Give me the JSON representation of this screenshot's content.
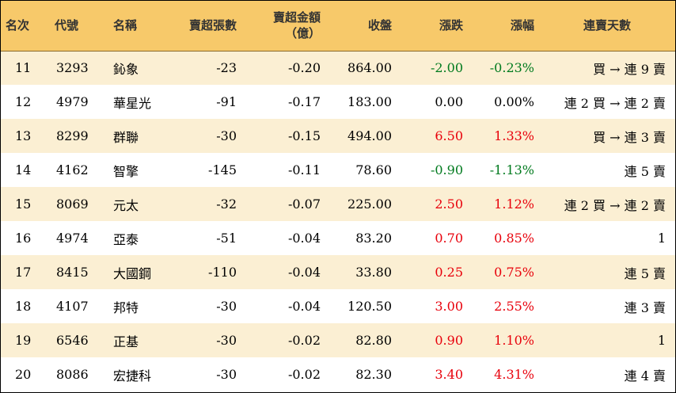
{
  "headers": {
    "rank": "名次",
    "code": "代號",
    "name": "名稱",
    "sell_lots": "賣超張數",
    "sell_amount_line1": "賣超金額",
    "sell_amount_line2": "（億）",
    "close": "收盤",
    "change": "漲跌",
    "change_pct": "漲幅",
    "consecutive": "連賣天數"
  },
  "colors": {
    "header_bg": "#f7c96a",
    "stripe_bg": "#fbefd3",
    "up": "#e8000b",
    "down": "#007a1e"
  },
  "rows": [
    {
      "rank": "11",
      "code": "3293",
      "name": "鈊象",
      "sell_lots": "-23",
      "sell_amount": "-0.20",
      "close": "864.00",
      "change": "-2.00",
      "change_pct": "-0.23%",
      "trend": "down",
      "consecutive": "買 → 連 9 賣"
    },
    {
      "rank": "12",
      "code": "4979",
      "name": "華星光",
      "sell_lots": "-91",
      "sell_amount": "-0.17",
      "close": "183.00",
      "change": "0.00",
      "change_pct": "0.00%",
      "trend": "flat",
      "consecutive": "連 2 買 → 連 2 賣"
    },
    {
      "rank": "13",
      "code": "8299",
      "name": "群聯",
      "sell_lots": "-30",
      "sell_amount": "-0.15",
      "close": "494.00",
      "change": "6.50",
      "change_pct": "1.33%",
      "trend": "up",
      "consecutive": "買 → 連 3 賣"
    },
    {
      "rank": "14",
      "code": "4162",
      "name": "智擎",
      "sell_lots": "-145",
      "sell_amount": "-0.11",
      "close": "78.60",
      "change": "-0.90",
      "change_pct": "-1.13%",
      "trend": "down",
      "consecutive": "連 5 賣"
    },
    {
      "rank": "15",
      "code": "8069",
      "name": "元太",
      "sell_lots": "-32",
      "sell_amount": "-0.07",
      "close": "225.00",
      "change": "2.50",
      "change_pct": "1.12%",
      "trend": "up",
      "consecutive": "連 2 買 → 連 2 賣"
    },
    {
      "rank": "16",
      "code": "4974",
      "name": "亞泰",
      "sell_lots": "-51",
      "sell_amount": "-0.04",
      "close": "83.20",
      "change": "0.70",
      "change_pct": "0.85%",
      "trend": "up",
      "consecutive": "1"
    },
    {
      "rank": "17",
      "code": "8415",
      "name": "大國鋼",
      "sell_lots": "-110",
      "sell_amount": "-0.04",
      "close": "33.80",
      "change": "0.25",
      "change_pct": "0.75%",
      "trend": "up",
      "consecutive": "連 5 賣"
    },
    {
      "rank": "18",
      "code": "4107",
      "name": "邦特",
      "sell_lots": "-30",
      "sell_amount": "-0.04",
      "close": "120.50",
      "change": "3.00",
      "change_pct": "2.55%",
      "trend": "up",
      "consecutive": "連 3 賣"
    },
    {
      "rank": "19",
      "code": "6546",
      "name": "正基",
      "sell_lots": "-30",
      "sell_amount": "-0.02",
      "close": "82.80",
      "change": "0.90",
      "change_pct": "1.10%",
      "trend": "up",
      "consecutive": "1"
    },
    {
      "rank": "20",
      "code": "8086",
      "name": "宏捷科",
      "sell_lots": "-30",
      "sell_amount": "-0.02",
      "close": "82.30",
      "change": "3.40",
      "change_pct": "4.31%",
      "trend": "up",
      "consecutive": "連 4 賣"
    }
  ]
}
